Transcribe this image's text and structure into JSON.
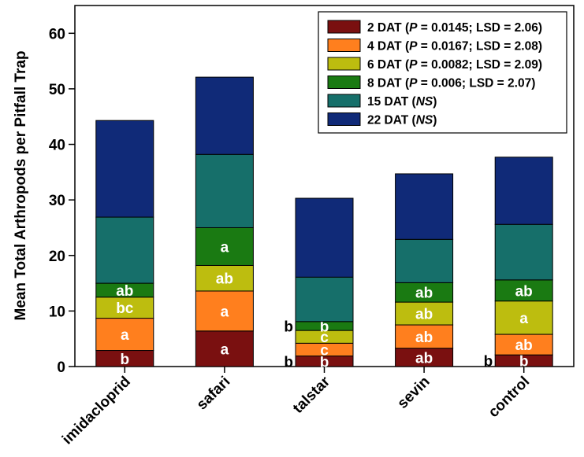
{
  "chart_data": {
    "type": "bar",
    "stacked": true,
    "ylabel": "Mean Total Arthropods per Pitfall Trap",
    "ylim": [
      0,
      65
    ],
    "yticks": [
      "0",
      "10",
      "20",
      "30",
      "40",
      "50",
      "60"
    ],
    "categories": [
      "imidacloprid",
      "safari",
      "talstar",
      "sevin",
      "control"
    ],
    "series": [
      {
        "name_parts": [
          {
            "t": "2 DAT ("
          },
          {
            "t": "P",
            "i": true
          },
          {
            "t": " = 0.0145; LSD = 2.06)"
          }
        ],
        "color": "#7a1010",
        "values": [
          2.9,
          6.4,
          1.9,
          3.3,
          2.1
        ],
        "labels": [
          "b",
          "a",
          "b",
          "ab",
          "b"
        ]
      },
      {
        "name_parts": [
          {
            "t": "4 DAT ("
          },
          {
            "t": "P",
            "i": true
          },
          {
            "t": " = 0.0167; LSD = 2.08)"
          }
        ],
        "color": "#ff7f1e",
        "values": [
          5.8,
          7.2,
          2.3,
          4.2,
          3.7
        ],
        "labels": [
          "a",
          "a",
          "c",
          "ab",
          "ab"
        ]
      },
      {
        "name_parts": [
          {
            "t": "6 DAT ("
          },
          {
            "t": "P",
            "i": true
          },
          {
            "t": " = 0.0082; LSD = 2.09)"
          }
        ],
        "color": "#bdbd0f",
        "values": [
          3.8,
          4.6,
          2.3,
          4.1,
          6.0
        ],
        "labels": [
          "bc",
          "ab",
          "c",
          "ab",
          "a"
        ]
      },
      {
        "name_parts": [
          {
            "t": "8 DAT ("
          },
          {
            "t": "P",
            "i": true
          },
          {
            "t": " = 0.006; LSD = 2.07)"
          }
        ],
        "color": "#1a7a12",
        "values": [
          2.5,
          6.8,
          1.6,
          3.5,
          3.8
        ],
        "labels": [
          "ab",
          "a",
          "b",
          "ab",
          "ab"
        ]
      },
      {
        "name_parts": [
          {
            "t": "15 DAT ("
          },
          {
            "t": "NS",
            "i": true
          },
          {
            "t": ")"
          }
        ],
        "color": "#166f6a",
        "values": [
          11.9,
          13.2,
          8.0,
          7.8,
          10.0
        ],
        "labels": [
          "",
          "",
          "",
          "",
          ""
        ]
      },
      {
        "name_parts": [
          {
            "t": "22 DAT ("
          },
          {
            "t": "NS",
            "i": true
          },
          {
            "t": ")"
          }
        ],
        "color": "#102a78",
        "values": [
          17.4,
          13.9,
          14.2,
          11.8,
          12.1
        ],
        "labels": [
          "",
          "",
          "",
          "",
          ""
        ]
      }
    ],
    "outside_labels": [
      {
        "category": "talstar",
        "series": 0,
        "text": "b"
      },
      {
        "category": "talstar",
        "series": 3,
        "text": "b"
      },
      {
        "category": "control",
        "series": 0,
        "text": "b"
      }
    ],
    "grid": false,
    "legend_position": "top-right"
  }
}
